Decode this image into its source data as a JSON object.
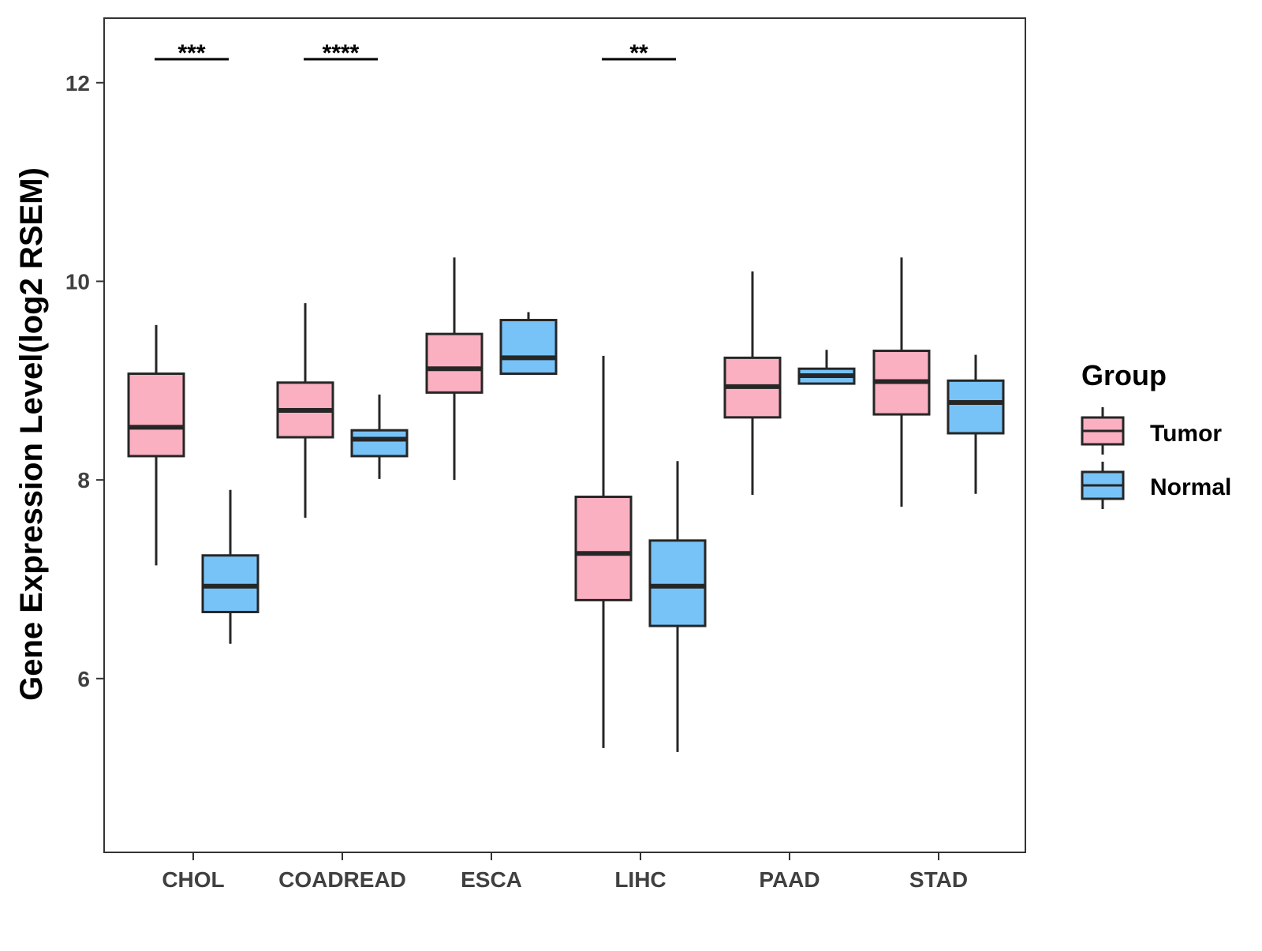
{
  "colors": {
    "tumor": "#FBB0C1",
    "normal": "#77C3F8",
    "stroke": "#262626",
    "axis": "#333333"
  },
  "chart_data": {
    "type": "boxplot",
    "title": "",
    "xlabel": "",
    "ylabel": "Gene Expression Level(log2 RSEM)",
    "ylim": [
      4.25,
      12.65
    ],
    "yticks": [
      6,
      8,
      10,
      12
    ],
    "ytick_labels": [
      "6",
      "8",
      "10",
      "12"
    ],
    "categories": [
      "CHOL",
      "COADREAD",
      "ESCA",
      "LIHC",
      "PAAD",
      "STAD"
    ],
    "series": [
      {
        "name": "Tumor",
        "color": "#FBB0C1",
        "boxes": [
          {
            "min": 7.14,
            "q1": 8.24,
            "median": 8.53,
            "q3": 9.07,
            "max": 9.56
          },
          {
            "min": 7.62,
            "q1": 8.43,
            "median": 8.7,
            "q3": 8.98,
            "max": 9.78
          },
          {
            "min": 8.0,
            "q1": 8.88,
            "median": 9.12,
            "q3": 9.47,
            "max": 10.24
          },
          {
            "min": 5.3,
            "q1": 6.79,
            "median": 7.26,
            "q3": 7.83,
            "max": 9.25
          },
          {
            "min": 7.85,
            "q1": 8.63,
            "median": 8.94,
            "q3": 9.23,
            "max": 10.1
          },
          {
            "min": 7.73,
            "q1": 8.66,
            "median": 8.99,
            "q3": 9.3,
            "max": 10.24
          }
        ]
      },
      {
        "name": "Normal",
        "color": "#77C3F8",
        "boxes": [
          {
            "min": 6.35,
            "q1": 6.67,
            "median": 6.93,
            "q3": 7.24,
            "max": 7.9
          },
          {
            "min": 8.01,
            "q1": 8.24,
            "median": 8.41,
            "q3": 8.5,
            "max": 8.86
          },
          {
            "min": 9.07,
            "q1": 9.07,
            "median": 9.23,
            "q3": 9.61,
            "max": 9.69
          },
          {
            "min": 5.26,
            "q1": 6.53,
            "median": 6.93,
            "q3": 7.39,
            "max": 8.19
          },
          {
            "min": 8.97,
            "q1": 8.97,
            "median": 9.05,
            "q3": 9.12,
            "max": 9.31
          },
          {
            "min": 7.86,
            "q1": 8.47,
            "median": 8.78,
            "q3": 9.0,
            "max": 9.26
          }
        ]
      }
    ],
    "annotations": [
      {
        "category": "CHOL",
        "label": "***"
      },
      {
        "category": "COADREAD",
        "label": "****"
      },
      {
        "category": "LIHC",
        "label": "**"
      }
    ],
    "legend": {
      "title": "Group",
      "position": "right",
      "items": [
        "Tumor",
        "Normal"
      ]
    }
  }
}
